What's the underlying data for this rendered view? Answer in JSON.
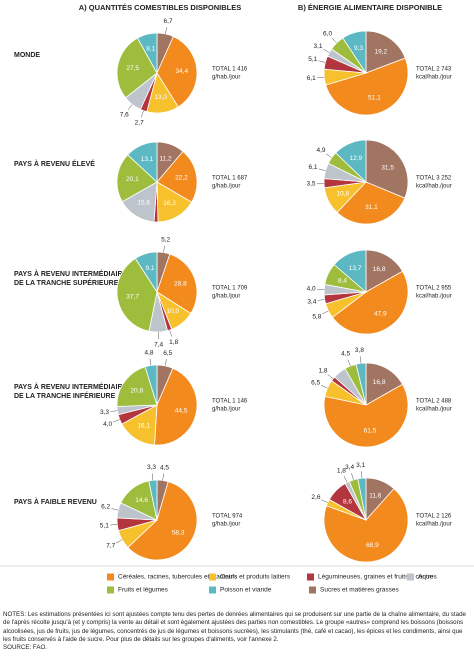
{
  "columns": [
    "A) QUANTITÉS COMESTIBLES DISPONIBLES",
    "B) ÉNERGIE ALIMENTAIRE DISPONIBLE"
  ],
  "rows": [
    [
      "MONDE"
    ],
    [
      "PAYS À REVENU ÉLEVÉ"
    ],
    [
      "PAYS À REVENU INTERMÉDIAIRE",
      "DE LA TRANCHE SUPÉRIEURE"
    ],
    [
      "PAYS À REVENU INTERMÉDIAIRE",
      "DE LA TRANCHE INFÉRIEURE"
    ],
    [
      "PAYS À FAIBLE REVENU"
    ]
  ],
  "legend": {
    "categories": [
      "Sucres et matières grasses",
      "Céréales, racines, tubercules et plantains",
      "Oeufs et produits laitiers",
      "Légumineuses, graines et fruits à coque",
      "Autres",
      "Fruits et légumes",
      "Poisson et viande"
    ],
    "colors": [
      "#a27562",
      "#f28a1e",
      "#f6c12c",
      "#b3353d",
      "#bec4cc",
      "#9ebd3d",
      "#5cb8c2"
    ]
  },
  "chart_data": [
    {
      "type": "pie",
      "values": [
        6.7,
        34.4,
        13.0,
        2.7,
        7.6,
        27.5,
        8.1
      ],
      "value_labels": [
        "6,7",
        "34,4",
        "13,0",
        "2,7",
        "7,6",
        "27,5",
        "8,1"
      ],
      "total": "TOTAL 1 416",
      "unit": "g/hab./jour"
    },
    {
      "type": "pie",
      "values": [
        19.2,
        51.1,
        6.1,
        5.1,
        3.1,
        6.0,
        9.3
      ],
      "value_labels": [
        "19,2",
        "51,1",
        "6,1",
        "5,1",
        "3,1",
        "6,0",
        "9,3"
      ],
      "total": "TOTAL 2 743",
      "unit": "kcal/hab./jour"
    },
    {
      "type": "pie",
      "values": [
        11.2,
        22.2,
        16.2,
        1.6,
        15.6,
        20.1,
        13.1
      ],
      "value_labels": [
        "11,2",
        "22,2",
        "16,2",
        null,
        "15,6",
        "20,1",
        "13,1"
      ],
      "total": "TOTAL 1 687",
      "unit": "g/hab./jour"
    },
    {
      "type": "pie",
      "values": [
        31.5,
        31.1,
        10.8,
        3.5,
        6.1,
        4.9,
        12.9
      ],
      "value_labels": [
        "31,5",
        "31,1",
        "10,8",
        "3,5",
        "6,1",
        "4,9",
        "12,9"
      ],
      "total": "TOTAL 3 252",
      "unit": "kcal/hab./jour"
    },
    {
      "type": "pie",
      "values": [
        5.2,
        28.8,
        10.0,
        1.8,
        7.4,
        37.7,
        9.1
      ],
      "value_labels": [
        "5,2",
        "28,8",
        "10,0",
        "1,8",
        "7,4",
        "37,7",
        "9,1"
      ],
      "total": "TOTAL 1 709",
      "unit": "g/hab./jour"
    },
    {
      "type": "pie",
      "values": [
        16.8,
        47.9,
        5.8,
        3.4,
        4.0,
        8.4,
        13.7
      ],
      "value_labels": [
        "16,8",
        "47,9",
        "5,8",
        "3,4",
        "4,0",
        "8,4",
        "13,7"
      ],
      "total": "TOTAL 2 955",
      "unit": "kcal/hab./jour"
    },
    {
      "type": "pie",
      "values": [
        6.5,
        44.5,
        16.1,
        4.0,
        3.3,
        20.8,
        4.8
      ],
      "value_labels": [
        "6,5",
        "44,5",
        "16,1",
        "4,0",
        "3,3",
        "20,8",
        "4,8"
      ],
      "total": "TOTAL 1 146",
      "unit": "g/hab./jour"
    },
    {
      "type": "pie",
      "values": [
        16.8,
        61.5,
        6.5,
        1.8,
        5.1,
        4.5,
        3.8
      ],
      "value_labels": [
        "16,8",
        "61,5",
        "6,5",
        "1,8",
        null,
        "4,5",
        "3,8"
      ],
      "total": "TOTAL 2 488",
      "unit": "kcal/hab./jour"
    },
    {
      "type": "pie",
      "values": [
        4.5,
        58.3,
        7.7,
        5.1,
        6.2,
        14.6,
        3.3
      ],
      "value_labels": [
        "4,5",
        "58,3",
        "7,7",
        "5,1",
        "6,2",
        "14,6",
        "3,3"
      ],
      "total": "TOTAL 974",
      "unit": "g/hab./jour"
    },
    {
      "type": "pie",
      "values": [
        11.6,
        68.9,
        2.6,
        8.6,
        1.8,
        3.4,
        3.1
      ],
      "value_labels": [
        "11,6",
        "68,9",
        "2,6",
        "8,6",
        "1,8",
        "3,4",
        "3,1"
      ],
      "total": "TOTAL 2 126",
      "unit": "kcal/hab./jour"
    }
  ],
  "notes": [
    "NOTES: Les estimations présentées ici sont ajustées compte tenu des pertes de denrées alimentaires qui se produisent sur une partie de la chaîne alimentaire, du stade de l'après récolte jusqu'à (et y compris) la vente au détail et sont également ajustées des parties non comestibles. Le groupe «autres» comprend les boissons (boissons alcoolisées, jus de fruits, jus de légumes, concentrés de jus de légumes et boissons sucrées), les stimulants (thé, café et cacao), les épices et les condiments, ainsi que les fruits conservés à l'aide de sucre. Pour plus de détails sur les groupes d'aliments, voir l'annexe 2.",
    "SOURCE: FAO."
  ]
}
